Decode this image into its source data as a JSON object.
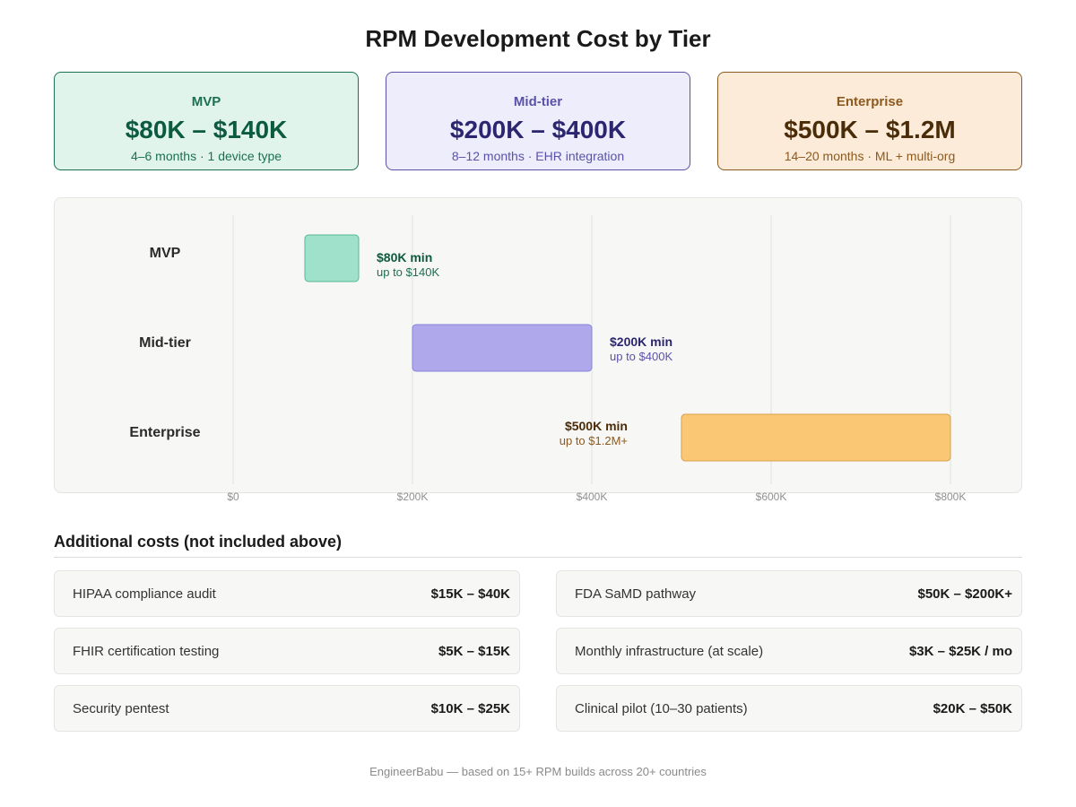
{
  "title": "RPM Development Cost by Tier",
  "tier_cards": [
    {
      "name": "MVP",
      "range": "$80K – $140K",
      "detail": "4–6 months · 1 device type"
    },
    {
      "name": "Mid-tier",
      "range": "$200K – $400K",
      "detail": "8–12 months · EHR integration"
    },
    {
      "name": "Enterprise",
      "range": "$500K – $1.2M",
      "detail": "14–20 months · ML + multi-org"
    }
  ],
  "chart_data": {
    "type": "bar",
    "orientation": "horizontal-range",
    "categories": [
      "MVP",
      "Mid-tier",
      "Enterprise"
    ],
    "ranges": [
      {
        "category": "MVP",
        "min": 80000,
        "max": 140000,
        "label_main": "$80K min",
        "label_sub": "up to $140K",
        "color": "#a0e1cb",
        "stroke": "#58b894",
        "label_color": "#0c5a40",
        "sub_color": "#1b7052"
      },
      {
        "category": "Mid-tier",
        "min": 200000,
        "max": 400000,
        "label_main": "$200K min",
        "label_sub": "up to $400K",
        "color": "#afa9ec",
        "stroke": "#8a82d8",
        "label_color": "#2c2670",
        "sub_color": "#5a52aa"
      },
      {
        "category": "Enterprise",
        "min": 500000,
        "max": 800000,
        "label_main": "$500K min",
        "label_sub": "up to $1.2M+",
        "color": "#fac775",
        "stroke": "#d6a04e",
        "label_color": "#4a2c08",
        "sub_color": "#8c5a1f"
      }
    ],
    "x_ticks": [
      {
        "value": 0,
        "label": "$0"
      },
      {
        "value": 200000,
        "label": "$200K"
      },
      {
        "value": 400000,
        "label": "$400K"
      },
      {
        "value": 600000,
        "label": "$600K"
      },
      {
        "value": 800000,
        "label": "$800K"
      }
    ],
    "xlim": [
      0,
      800000
    ],
    "grid": true
  },
  "additional_costs": {
    "heading": "Additional costs (not included above)",
    "items": [
      {
        "label": "HIPAA compliance audit",
        "value": "$15K – $40K"
      },
      {
        "label": "FDA SaMD pathway",
        "value": "$50K – $200K+"
      },
      {
        "label": "FHIR certification testing",
        "value": "$5K – $15K"
      },
      {
        "label": "Monthly infrastructure (at scale)",
        "value": "$3K – $25K / mo"
      },
      {
        "label": "Security pentest",
        "value": "$10K – $25K"
      },
      {
        "label": "Clinical pilot (10–30 patients)",
        "value": "$20K – $50K"
      }
    ]
  },
  "footer": "EngineerBabu — based on 15+ RPM builds across 20+ countries"
}
